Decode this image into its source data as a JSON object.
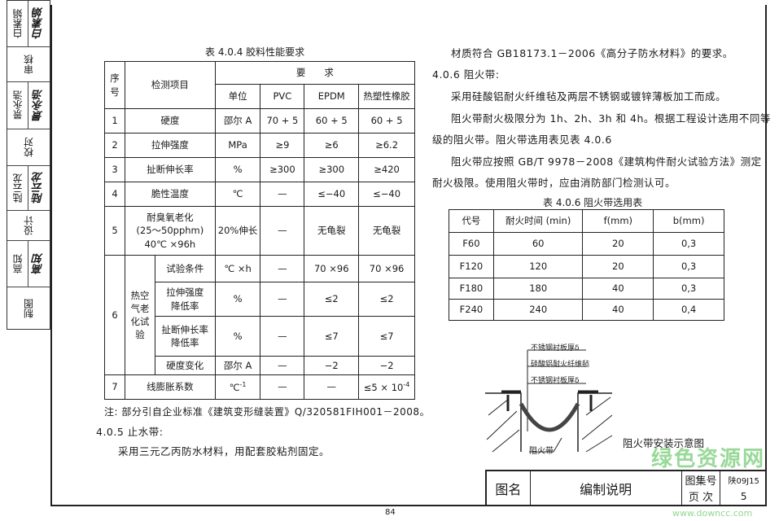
{
  "side_strip": [
    {
      "label": "白素娟",
      "signature": "白素娟"
    },
    {
      "label": "审核"
    },
    {
      "label": "景永浩",
      "signature": "景永浩"
    },
    {
      "label": "校对"
    },
    {
      "label": "陆云龙",
      "signature": "陆云龙"
    },
    {
      "label": "设计"
    },
    {
      "label": "高知",
      "signature": "高知"
    },
    {
      "label": "制图"
    }
  ],
  "table1": {
    "caption": "表 4.0.4 胶料性能要求",
    "h_no": "序号",
    "h_item": "检测项目",
    "h_req": "要　　求",
    "h_unit": "单位",
    "h_pvc": "PVC",
    "h_epdm": "EPDM",
    "h_tpr": "热塑性橡胶",
    "rows": [
      {
        "no": "1",
        "item": "硬度",
        "unit": "邵尔 A",
        "pvc": "70 + 5",
        "epdm": "60 + 5",
        "tpr": "60 + 5"
      },
      {
        "no": "2",
        "item": "拉伸强度",
        "unit": "MPa",
        "pvc": "≥9",
        "epdm": "≥6",
        "tpr": "≥6.2"
      },
      {
        "no": "3",
        "item": "扯断伸长率",
        "unit": "%",
        "pvc": "≥300",
        "epdm": "≥300",
        "tpr": "≥420"
      },
      {
        "no": "4",
        "item": "脆性温度",
        "unit": "℃",
        "pvc": "—",
        "epdm": "≤−40",
        "tpr": "≤−40"
      },
      {
        "no": "5",
        "item": "耐臭氧老化",
        "item2": "(25～50pphm)",
        "item3": "40℃ ×96h",
        "unit": "20%伸长",
        "pvc": "—",
        "epdm": "无龟裂",
        "tpr": "无龟裂"
      }
    ],
    "row6": {
      "no": "6",
      "group": "热空气老化试验",
      "sub": [
        {
          "item": "试验条件",
          "unit": "℃ ×h",
          "pvc": "—",
          "epdm": "70 ×96",
          "tpr": "70 ×96"
        },
        {
          "item": "拉伸强度降低率",
          "unit": "%",
          "pvc": "—",
          "epdm": "≤2",
          "tpr": "≤2"
        },
        {
          "item": "扯断伸长率降低率",
          "unit": "%",
          "pvc": "—",
          "epdm": "≤7",
          "tpr": "≤7"
        },
        {
          "item": "硬度变化",
          "unit": "邵尔 A",
          "pvc": "—",
          "epdm": "−2",
          "tpr": "−2"
        }
      ]
    },
    "row7": {
      "no": "7",
      "item": "线膨胀系数",
      "unit": "℃",
      "unit_exp": "-1",
      "pvc": "—",
      "epdm": "—",
      "tpr": "≤5 × 10",
      "tpr_exp": "-4"
    }
  },
  "note": "注: 部分引自企业标准《建筑变形缝装置》Q/320581FIH001－2008。",
  "s405_title": "4.0.5 止水带:",
  "s405_text": "采用三元乙丙防水材料，用配套胶粘剂固定。",
  "r_text1": "材质符合 GB18173.1－2006《高分子防水材料》的要求。",
  "s406_title": "4.0.6 阻火带:",
  "s406_p1": "采用硅酸铝耐火纤维毡及两层不锈钢或镀锌薄板加工而成。",
  "s406_p2a": "阻火带耐火极限分为 1h、2h、3h 和 4h。根据工程设计选用不同等",
  "s406_p2b": "级的阻火带。阻火带选用表见表 4.0.6",
  "s406_p3a": "阻火带应按照 GB/T 9978－2008《建筑构件耐火试验方法》测定",
  "s406_p3b": "耐火极限。使用阻火带时，应由消防部门检测认可。",
  "table2": {
    "caption": "表 4.0.6 阻火带选用表",
    "headers": [
      "代号",
      "耐火时间 (min)",
      "f(mm)",
      "b(mm)"
    ],
    "rows": [
      [
        "F60",
        "60",
        "20",
        "0,3"
      ],
      [
        "F120",
        "120",
        "20",
        "0,3"
      ],
      [
        "F180",
        "180",
        "40",
        "0,3"
      ],
      [
        "F240",
        "240",
        "40",
        "0,4"
      ]
    ]
  },
  "diagram": {
    "labels": [
      "不锈钢衬板厚δ",
      "硅酸铝耐火纤维毡",
      "不锈钢衬板厚δ"
    ],
    "band_label": "阻火带",
    "caption": "阻火带安装示意图"
  },
  "title_block": {
    "name_label": "图名",
    "name": "编制说明",
    "atlas_label": "图集号",
    "atlas": "陕09J15",
    "page_label": "页 次",
    "page": "5"
  },
  "page_number": "84",
  "watermark": {
    "text": "绿色资源网",
    "url": "www.downcc.com",
    "color": "#7fd07f"
  }
}
